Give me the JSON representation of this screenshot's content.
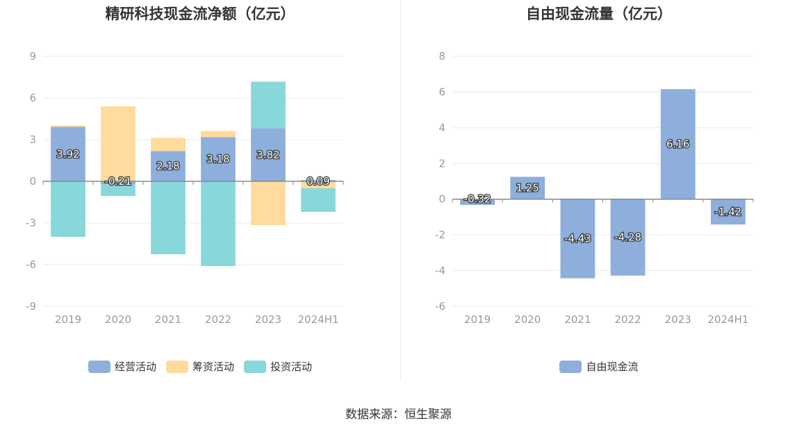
{
  "charts": [
    {
      "title": "精研科技现金流净额（亿元）",
      "legend": [
        {
          "label": "经营活动",
          "color": "#8eaedc"
        },
        {
          "label": "筹资活动",
          "color": "#ffdb9d"
        },
        {
          "label": "投资活动",
          "color": "#88d7da"
        }
      ]
    },
    {
      "title": "自由现金流量（亿元）",
      "legend": [
        {
          "label": "自由现金流",
          "color": "#8eaedc"
        }
      ]
    }
  ],
  "source": "数据来源：恒生聚源",
  "chart_data": [
    {
      "type": "bar",
      "stacked": true,
      "title": "精研科技现金流净额（亿元）",
      "categories": [
        "2019",
        "2020",
        "2021",
        "2022",
        "2023",
        "2024H1"
      ],
      "ylim": [
        -9,
        9
      ],
      "yticks": [
        -9,
        -6,
        -3,
        0,
        3,
        6,
        9
      ],
      "series": [
        {
          "name": "经营活动",
          "color": "#8eaedc",
          "values": [
            3.92,
            -0.21,
            2.18,
            3.18,
            3.82,
            0.09
          ],
          "labels": [
            "3.92",
            "-0.21",
            "2.18",
            "3.18",
            "3.82",
            "0.09"
          ]
        },
        {
          "name": "筹资活动",
          "color": "#ffdb9d",
          "values": [
            0.1,
            5.4,
            0.95,
            0.45,
            -3.15,
            -0.5
          ]
        },
        {
          "name": "投资活动",
          "color": "#88d7da",
          "values": [
            -4.0,
            -0.85,
            -5.25,
            -6.1,
            3.35,
            -1.7
          ]
        }
      ],
      "legend": "bottom",
      "grid": true
    },
    {
      "type": "bar",
      "title": "自由现金流量（亿元）",
      "categories": [
        "2019",
        "2020",
        "2021",
        "2022",
        "2023",
        "2024H1"
      ],
      "ylim": [
        -6,
        8
      ],
      "yticks": [
        -6,
        -4,
        -2,
        0,
        2,
        4,
        6,
        8
      ],
      "series": [
        {
          "name": "自由现金流",
          "color": "#8eaedc",
          "values": [
            -0.32,
            1.25,
            -4.43,
            -4.28,
            6.16,
            -1.42
          ],
          "labels": [
            "-0.32",
            "1.25",
            "-4.43",
            "-4.28",
            "6.16",
            "-1.42"
          ]
        }
      ],
      "legend": "bottom",
      "grid": true
    }
  ]
}
